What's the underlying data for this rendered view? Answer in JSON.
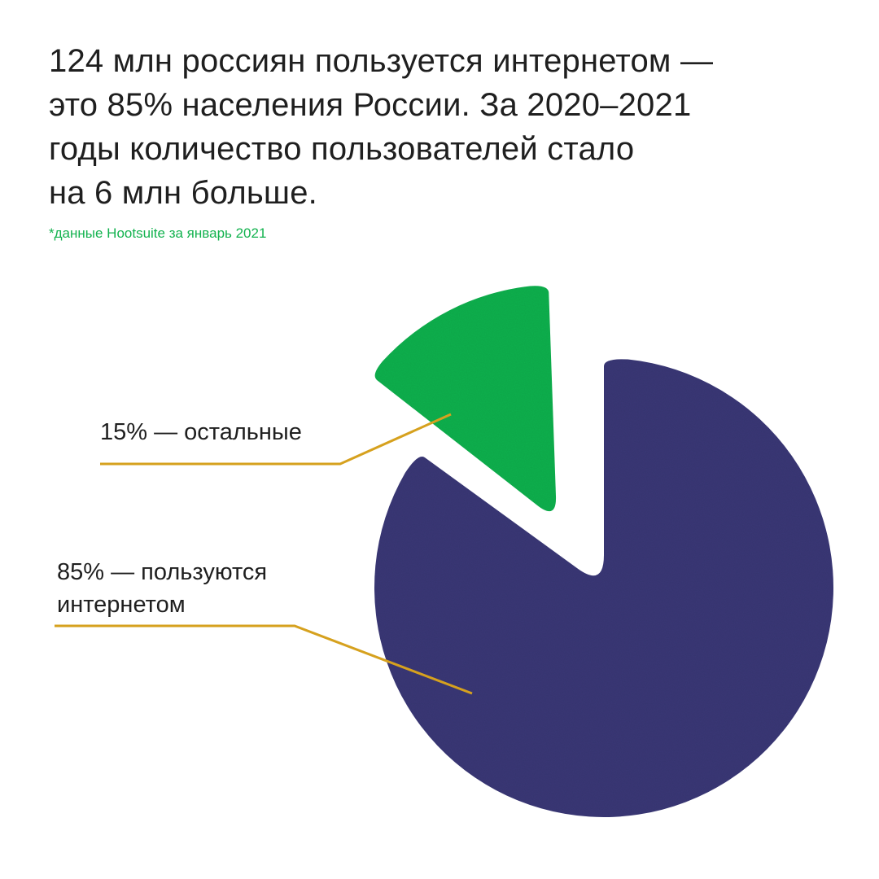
{
  "headline": {
    "lines": [
      "124 млн россиян пользуется интернетом —",
      "это 85% населения России. За 2020–2021",
      "годы количество пользователей стало",
      "на 6 млн больше."
    ]
  },
  "source_note": "*данные Hootsuite за январь 2021",
  "colors": {
    "accent_green": "#12b24e",
    "main_purple": "#3a3877",
    "leader_line": "#d6a11e",
    "text": "#1f1f1f",
    "note": "#12b24e"
  },
  "chart_data": {
    "type": "pie",
    "title": "",
    "series": [
      {
        "values": [
          85,
          15
        ],
        "labels": [
          "85% — пользуются интернетом",
          "15% — остальные"
        ]
      }
    ],
    "slices": [
      {
        "label_lines": [
          "85% — пользуются",
          "интернетом"
        ],
        "value": 85,
        "color": "#3a3877",
        "exploded": false
      },
      {
        "label_lines": [
          "15% — остальные"
        ],
        "value": 15,
        "color": "#12b24e",
        "exploded": true
      }
    ],
    "legend": "none",
    "start_angle_deg": 0,
    "direction": "clockwise"
  }
}
